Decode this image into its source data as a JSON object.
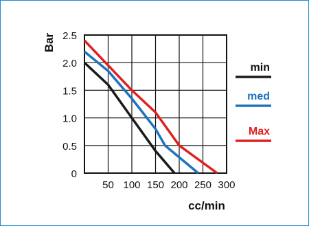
{
  "chart_data": {
    "type": "line",
    "ylabel": "Bar",
    "xlabel": "cc/min",
    "xlim": [
      0,
      300
    ],
    "ylim": [
      0,
      2.5
    ],
    "x_ticks": [
      "50",
      "100",
      "150",
      "200",
      "250",
      "300"
    ],
    "y_ticks": [
      "0",
      "0.5",
      "1.0",
      "1.5",
      "2.0",
      "2.5"
    ],
    "grid": true,
    "legend_position": "right",
    "series": [
      {
        "name": "min",
        "color": "#1a1a1a",
        "x": [
          0,
          50,
          100,
          150,
          190
        ],
        "y": [
          2.0,
          1.6,
          1.0,
          0.4,
          0.0
        ]
      },
      {
        "name": "med",
        "color": "#1e73be",
        "x": [
          0,
          50,
          100,
          150,
          170,
          240
        ],
        "y": [
          2.2,
          1.85,
          1.35,
          0.8,
          0.5,
          0.0
        ]
      },
      {
        "name": "Max",
        "color": "#e02020",
        "x": [
          0,
          50,
          100,
          150,
          200,
          280
        ],
        "y": [
          2.4,
          1.95,
          1.5,
          1.1,
          0.5,
          0.0
        ]
      }
    ]
  }
}
